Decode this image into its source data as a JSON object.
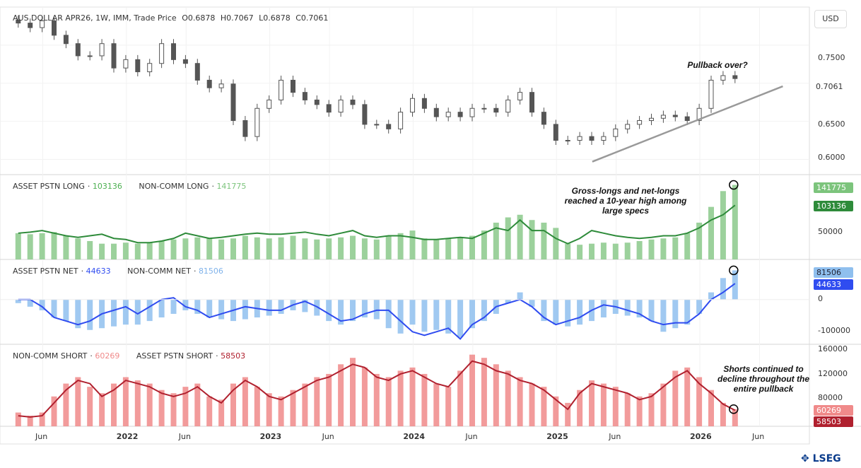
{
  "header": {
    "title": "AUS DOLLAR APR26, 1W, IMM, Trade Price",
    "open": "O0.6878",
    "high": "H0.7067",
    "low": "L0.6878",
    "close": "C0.7061"
  },
  "currency_button": "USD",
  "brand": "LSEG",
  "colors": {
    "up": "#26a69a",
    "price": "#555555",
    "long_bar": "#8bc98b",
    "long_line": "#2e8b3a",
    "net_bar": "#8fbfee",
    "net_line": "#2f4cf0",
    "short_bar": "#f08a8a",
    "short_line": "#b0202e"
  },
  "annotations": {
    "price": "Pullback over?",
    "long": "Gross-longs and net-longs reached a 10-year high among large specs",
    "short": "Shorts continued to decline throughout the entire pullback"
  },
  "chart_data": [
    {
      "type": "candlestick",
      "panel": "price",
      "start": "2021-03",
      "interval": "monthly (approx)",
      "ylim": [
        0.58,
        0.8
      ],
      "yticks": [
        "0.7500",
        "0.6500",
        "0.6000"
      ],
      "last_label": "0.7061",
      "values": [
        0.779,
        0.773,
        0.782,
        0.763,
        0.752,
        0.736,
        0.736,
        0.752,
        0.72,
        0.731,
        0.715,
        0.726,
        0.752,
        0.731,
        0.726,
        0.704,
        0.694,
        0.699,
        0.651,
        0.63,
        0.667,
        0.678,
        0.704,
        0.688,
        0.678,
        0.672,
        0.662,
        0.678,
        0.672,
        0.646,
        0.646,
        0.64,
        0.662,
        0.68,
        0.667,
        0.656,
        0.662,
        0.656,
        0.667,
        0.667,
        0.662,
        0.678,
        0.688,
        0.662,
        0.646,
        0.625,
        0.625,
        0.63,
        0.625,
        0.63,
        0.64,
        0.646,
        0.651,
        0.654,
        0.658,
        0.656,
        0.651,
        0.667,
        0.704,
        0.71,
        0.7061
      ],
      "trendline": [
        {
          "date": "2025-04",
          "value": 0.597
        },
        {
          "date": "2026-07",
          "value": 0.696
        }
      ]
    },
    {
      "type": "bar+line",
      "panel": "long",
      "ylim": [
        0,
        160000
      ],
      "yticks": [
        "50000"
      ],
      "series": [
        {
          "name": "ASSET PSTN LONG",
          "last": "103136",
          "style": "line",
          "values": [
            50,
            52,
            55,
            50,
            45,
            42,
            45,
            48,
            40,
            38,
            32,
            32,
            35,
            40,
            50,
            45,
            40,
            42,
            45,
            48,
            50,
            48,
            48,
            50,
            52,
            48,
            45,
            50,
            55,
            45,
            42,
            45,
            45,
            42,
            38,
            38,
            40,
            42,
            40,
            50,
            60,
            55,
            75,
            55,
            55,
            40,
            30,
            40,
            55,
            50,
            45,
            42,
            40,
            42,
            45,
            45,
            50,
            60,
            75,
            85,
            103.136
          ]
        },
        {
          "name": "NON-COMM LONG",
          "last": "141775",
          "style": "bar",
          "values": [
            50,
            48,
            50,
            52,
            45,
            40,
            35,
            30,
            30,
            32,
            30,
            32,
            35,
            38,
            40,
            42,
            40,
            38,
            40,
            45,
            42,
            40,
            42,
            45,
            40,
            38,
            40,
            42,
            45,
            40,
            38,
            45,
            50,
            55,
            40,
            38,
            40,
            42,
            45,
            55,
            70,
            80,
            85,
            75,
            70,
            60,
            30,
            28,
            30,
            32,
            30,
            32,
            35,
            38,
            40,
            42,
            50,
            70,
            100,
            130,
            141.775
          ]
        }
      ]
    },
    {
      "type": "bar+line",
      "panel": "net",
      "ylim": [
        -125000,
        110000
      ],
      "yticks": [
        "0",
        "-100000"
      ],
      "series": [
        {
          "name": "ASSET PSTN NET",
          "last": "44633",
          "style": "line",
          "values": [
            0,
            0,
            -20,
            -50,
            -60,
            -70,
            -60,
            -40,
            -30,
            -20,
            -40,
            -20,
            0,
            5,
            -20,
            -30,
            -50,
            -40,
            -30,
            -20,
            -25,
            -30,
            -30,
            -15,
            -5,
            -20,
            -40,
            -60,
            -55,
            -40,
            -30,
            -30,
            -60,
            -90,
            -100,
            -90,
            -80,
            -110,
            -70,
            -50,
            -20,
            -10,
            0,
            -20,
            -50,
            -70,
            -60,
            -50,
            -30,
            -15,
            -20,
            -30,
            -40,
            -60,
            -70,
            -65,
            -65,
            -40,
            0,
            20,
            44.633
          ]
        },
        {
          "name": "NON-COMM NET",
          "last": "81506",
          "style": "bar",
          "values": [
            -10,
            -20,
            -30,
            -50,
            -60,
            -80,
            -85,
            -80,
            -75,
            -70,
            -70,
            -60,
            -50,
            -40,
            -30,
            -40,
            -50,
            -55,
            -60,
            -55,
            -50,
            -45,
            -40,
            -30,
            -35,
            -45,
            -60,
            -70,
            -60,
            -50,
            -55,
            -80,
            -95,
            -70,
            -90,
            -85,
            -95,
            -105,
            -80,
            -60,
            -40,
            -10,
            20,
            -20,
            -60,
            -70,
            -75,
            -70,
            -60,
            -50,
            -40,
            -45,
            -50,
            -60,
            -90,
            -80,
            -70,
            -40,
            20,
            60,
            81.506
          ]
        }
      ]
    },
    {
      "type": "bar+line",
      "panel": "short",
      "ylim": [
        33600,
        160000
      ],
      "yticks": [
        "160000",
        "120000",
        "80000"
      ],
      "series": [
        {
          "name": "NON-COMM SHORT",
          "last": "60269",
          "style": "bar",
          "values": [
            55,
            50,
            55,
            80,
            100,
            110,
            95,
            85,
            100,
            110,
            105,
            100,
            90,
            85,
            95,
            100,
            80,
            75,
            100,
            110,
            95,
            85,
            80,
            90,
            100,
            110,
            115,
            130,
            140,
            125,
            115,
            110,
            120,
            125,
            115,
            100,
            95,
            120,
            145,
            140,
            130,
            120,
            110,
            100,
            95,
            80,
            70,
            90,
            105,
            100,
            95,
            85,
            80,
            85,
            100,
            120,
            125,
            110,
            90,
            70,
            60.269
          ]
        },
        {
          "name": "ASSET PSTN SHORT",
          "last": "58503",
          "style": "line",
          "values": [
            50,
            48,
            50,
            70,
            90,
            105,
            100,
            80,
            90,
            105,
            100,
            95,
            85,
            80,
            85,
            95,
            80,
            70,
            90,
            105,
            95,
            80,
            75,
            85,
            95,
            105,
            110,
            120,
            130,
            125,
            110,
            105,
            115,
            120,
            110,
            100,
            95,
            115,
            135,
            130,
            120,
            115,
            105,
            100,
            90,
            75,
            60,
            85,
            100,
            95,
            90,
            85,
            75,
            80,
            95,
            110,
            120,
            100,
            85,
            68,
            58.503
          ]
        }
      ]
    }
  ],
  "x_axis": {
    "ticks": [
      {
        "label": "Jun",
        "date": "2021-06"
      },
      {
        "label": "2022",
        "date": "2022-01"
      },
      {
        "label": "Jun",
        "date": "2022-06"
      },
      {
        "label": "2023",
        "date": "2023-01"
      },
      {
        "label": "Jun",
        "date": "2023-06"
      },
      {
        "label": "2024",
        "date": "2024-01"
      },
      {
        "label": "Jun",
        "date": "2024-06"
      },
      {
        "label": "2025",
        "date": "2025-01"
      },
      {
        "label": "Jun",
        "date": "2025-06"
      },
      {
        "label": "2026",
        "date": "2026-01"
      },
      {
        "label": "Jun",
        "date": "2026-06"
      }
    ]
  }
}
